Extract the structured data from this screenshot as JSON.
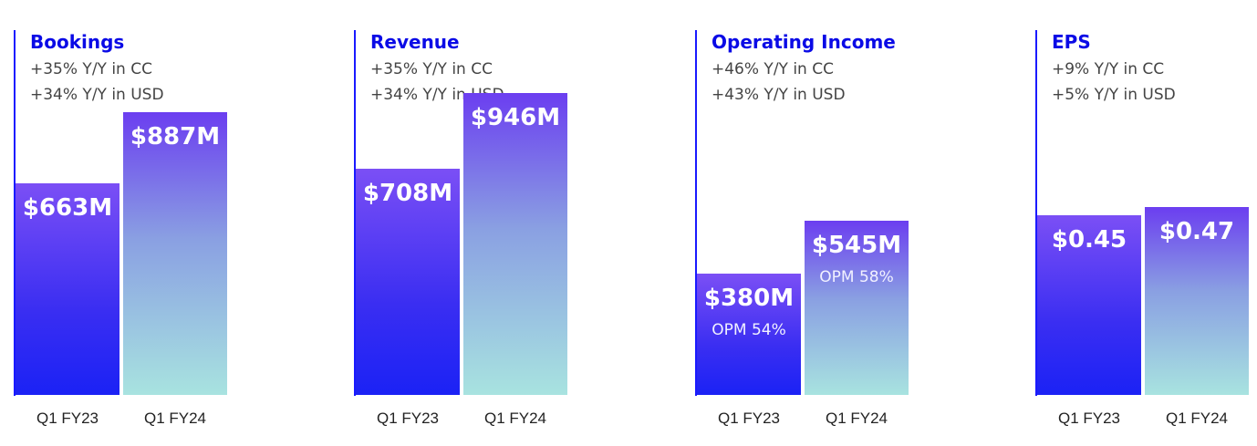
{
  "chart_data": [
    {
      "type": "bar",
      "title": "Bookings",
      "subtitle_lines": [
        "+35% Y/Y in CC",
        "+34% Y/Y in USD"
      ],
      "categories": [
        "Q1 FY23",
        "Q1 FY24"
      ],
      "values": [
        663,
        887
      ],
      "value_labels": [
        "$663M",
        "$887M"
      ],
      "notes": [
        "",
        ""
      ],
      "ylim": [
        0,
        1000
      ]
    },
    {
      "type": "bar",
      "title": "Revenue",
      "subtitle_lines": [
        "+35% Y/Y in CC",
        "+34% Y/Y in USD"
      ],
      "categories": [
        "Q1 FY23",
        "Q1 FY24"
      ],
      "values": [
        708,
        946
      ],
      "value_labels": [
        "$708M",
        "$946M"
      ],
      "notes": [
        "",
        ""
      ],
      "ylim": [
        0,
        1000
      ]
    },
    {
      "type": "bar",
      "title": "Operating Income",
      "subtitle_lines": [
        "+46% Y/Y in CC",
        "+43% Y/Y in USD"
      ],
      "categories": [
        "Q1 FY23",
        "Q1 FY24"
      ],
      "values": [
        380,
        545
      ],
      "value_labels": [
        "$380M",
        "$545M"
      ],
      "notes": [
        "OPM 54%",
        "OPM 58%"
      ],
      "ylim": [
        0,
        1000
      ]
    },
    {
      "type": "bar",
      "title": "EPS",
      "subtitle_lines": [
        "+9% Y/Y in CC",
        "+5% Y/Y in USD"
      ],
      "categories": [
        "Q1 FY23",
        "Q1 FY24"
      ],
      "values": [
        0.45,
        0.47
      ],
      "value_labels": [
        "$0.45",
        "$0.47"
      ],
      "notes": [
        "",
        ""
      ],
      "ylim": [
        0,
        0.8
      ]
    }
  ],
  "colors": {
    "title": "#0a0ae6",
    "axis": "#1a1aff",
    "fy23_bar": [
      "#7b4ff5",
      "#1b22f5"
    ],
    "fy24_bar": [
      "#6b3ef0",
      "#a8e3e0"
    ]
  }
}
